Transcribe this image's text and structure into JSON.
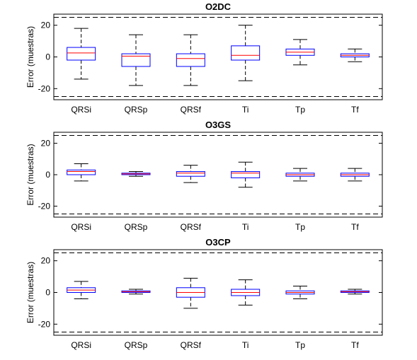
{
  "chart_data": [
    {
      "type": "box",
      "title": "O2DC",
      "ylabel": "Error (muestras)",
      "ylim": [
        -27,
        27
      ],
      "yticks": [
        20,
        0,
        -20
      ],
      "limit_lines": [
        25,
        -25
      ],
      "categories": [
        "QRSi",
        "QRSp",
        "QRSf",
        "Ti",
        "Tp",
        "Tf"
      ],
      "boxes": [
        {
          "whisker_low": -14,
          "q1": -2,
          "median": 2.5,
          "q3": 6,
          "whisker_high": 18
        },
        {
          "whisker_low": -18,
          "q1": -6,
          "median": 0.5,
          "q3": 2,
          "whisker_high": 14
        },
        {
          "whisker_low": -18,
          "q1": -6,
          "median": -1,
          "q3": 2,
          "whisker_high": 14
        },
        {
          "whisker_low": -15,
          "q1": -2,
          "median": 1,
          "q3": 7,
          "whisker_high": 20
        },
        {
          "whisker_low": -5,
          "q1": 1,
          "median": 3,
          "q3": 5,
          "whisker_high": 11
        },
        {
          "whisker_low": -3,
          "q1": 0,
          "median": 1,
          "q3": 2,
          "whisker_high": 5
        }
      ]
    },
    {
      "type": "box",
      "title": "O3GS",
      "ylabel": "Error (muestras)",
      "ylim": [
        -27,
        27
      ],
      "yticks": [
        20,
        0,
        -20
      ],
      "limit_lines": [
        25,
        -25
      ],
      "categories": [
        "QRSi",
        "QRSp",
        "QRSf",
        "Ti",
        "Tp",
        "Tf"
      ],
      "boxes": [
        {
          "whisker_low": -4,
          "q1": 0,
          "median": 2,
          "q3": 3,
          "whisker_high": 7
        },
        {
          "whisker_low": -1,
          "q1": 0,
          "median": 0.5,
          "q3": 1,
          "whisker_high": 2
        },
        {
          "whisker_low": -5,
          "q1": -1,
          "median": 1,
          "q3": 2,
          "whisker_high": 6
        },
        {
          "whisker_low": -8,
          "q1": -2,
          "median": 1,
          "q3": 2,
          "whisker_high": 8
        },
        {
          "whisker_low": -4,
          "q1": -1,
          "median": 0,
          "q3": 1,
          "whisker_high": 4
        },
        {
          "whisker_low": -4,
          "q1": -1,
          "median": 0,
          "q3": 1,
          "whisker_high": 4
        }
      ]
    },
    {
      "type": "box",
      "title": "O3CP",
      "ylabel": "Error (muestras)",
      "ylim": [
        -27,
        27
      ],
      "yticks": [
        20,
        0,
        -20
      ],
      "limit_lines": [
        25,
        -25
      ],
      "categories": [
        "QRSi",
        "QRSp",
        "QRSf",
        "Ti",
        "Tp",
        "Tf"
      ],
      "boxes": [
        {
          "whisker_low": -4,
          "q1": 0,
          "median": 1.5,
          "q3": 3,
          "whisker_high": 7
        },
        {
          "whisker_low": -1,
          "q1": 0,
          "median": 0.5,
          "q3": 1,
          "whisker_high": 2
        },
        {
          "whisker_low": -10,
          "q1": -3,
          "median": 0,
          "q3": 3,
          "whisker_high": 9
        },
        {
          "whisker_low": -8,
          "q1": -2,
          "median": 0,
          "q3": 2,
          "whisker_high": 8
        },
        {
          "whisker_low": -4,
          "q1": -1,
          "median": 0,
          "q3": 1,
          "whisker_high": 4
        },
        {
          "whisker_low": -1,
          "q1": 0,
          "median": 0.5,
          "q3": 1,
          "whisker_high": 2
        }
      ]
    }
  ],
  "colors": {
    "box": "#0000ff",
    "median": "#ff0000",
    "whisker": "#000000",
    "limit_line": "#000000",
    "axes": "#000000"
  }
}
